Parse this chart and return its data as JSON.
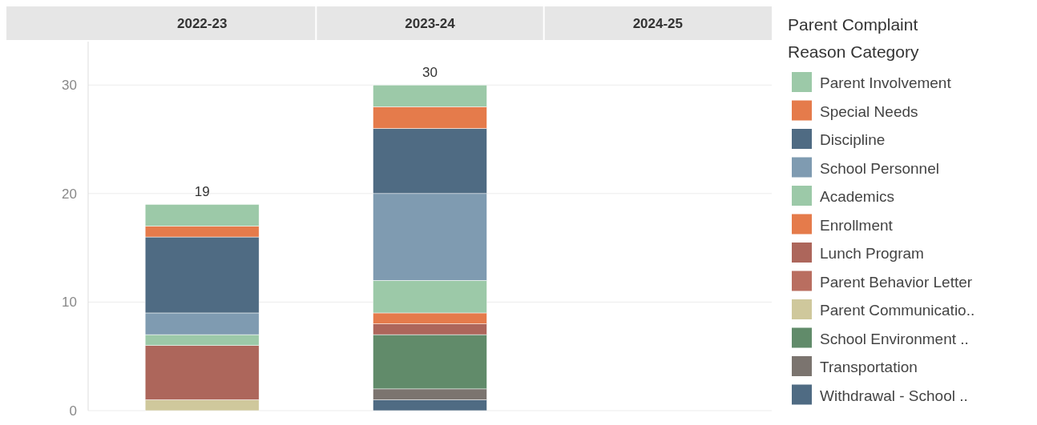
{
  "chart_data": {
    "type": "bar",
    "stacked": true,
    "categories": [
      "2022-23",
      "2023-24",
      "2024-25"
    ],
    "ylim": [
      0,
      34
    ],
    "yticks": [
      0,
      10,
      20,
      30
    ],
    "grid": "y",
    "legend": "right",
    "legend_title": "Parent Complaint Reason Category",
    "totals": [
      "19",
      "30",
      null
    ],
    "series": [
      {
        "name": "Withdrawal - School ..",
        "color": "#4f6b83",
        "values": [
          0,
          1,
          null
        ]
      },
      {
        "name": "Transportation",
        "color": "#7b746f",
        "values": [
          0,
          1,
          null
        ]
      },
      {
        "name": "School Environment ..",
        "color": "#618b6a",
        "values": [
          0,
          5,
          null
        ]
      },
      {
        "name": "Parent Communicatio..",
        "color": "#cfc89c",
        "values": [
          1,
          0,
          null
        ]
      },
      {
        "name": "Parent Behavior Letter",
        "color": "#b96e60",
        "values": [
          0,
          0,
          null
        ]
      },
      {
        "name": "Lunch Program",
        "color": "#ad665b",
        "values": [
          5,
          1,
          null
        ]
      },
      {
        "name": "Enrollment",
        "color": "#e57b4b",
        "values": [
          0,
          1,
          null
        ]
      },
      {
        "name": "Academics",
        "color": "#9cc9a8",
        "values": [
          1,
          3,
          null
        ]
      },
      {
        "name": "School Personnel",
        "color": "#7f9bb1",
        "values": [
          2,
          8,
          null
        ]
      },
      {
        "name": "Discipline",
        "color": "#4f6b83",
        "values": [
          7,
          6,
          null
        ]
      },
      {
        "name": "Special Needs",
        "color": "#e57b4b",
        "values": [
          1,
          2,
          null
        ]
      },
      {
        "name": "Parent Involvement",
        "color": "#9cc9a8",
        "values": [
          2,
          2,
          null
        ]
      }
    ]
  }
}
